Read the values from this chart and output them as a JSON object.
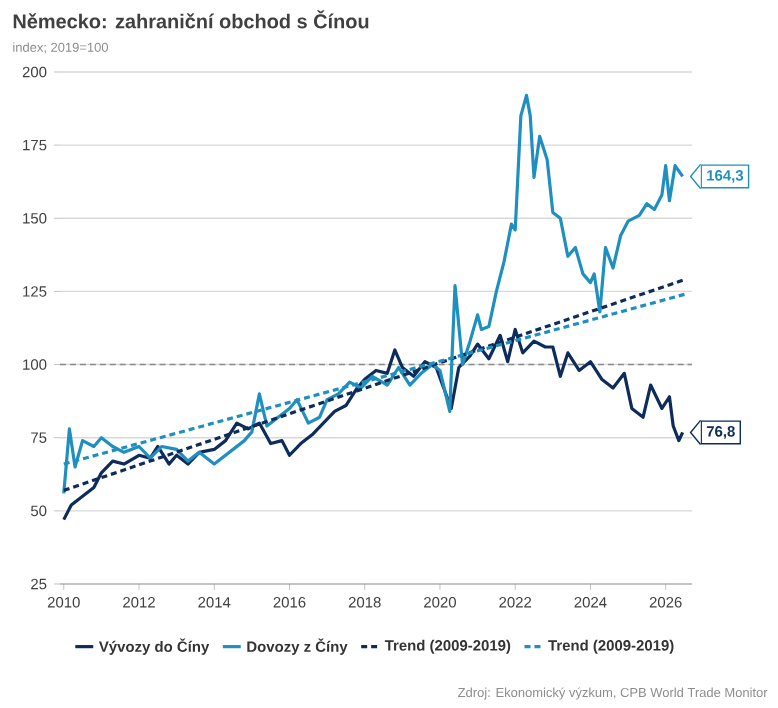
{
  "chart_data": {
    "type": "line",
    "title": "Německo: zahraniční obchod s Čínou",
    "subtitle": "index; 2019=100",
    "annotations": [
      {
        "text": "164,3",
        "x": 2026.45,
        "y": 164.3
      },
      {
        "text": "76,8",
        "x": 2026.45,
        "y": 76.8
      },
      "Zdroj: Ekonomický výzkum, CPB World Trade Monitor"
    ],
    "xlim": [
      2009.9,
      2026.7
    ],
    "xticks": [
      2010,
      2012,
      2014,
      2016,
      2018,
      2020,
      2022,
      2024,
      2026
    ],
    "ylim": [
      25,
      200
    ],
    "yticks": [
      25,
      50,
      75,
      100,
      125,
      150,
      175,
      200
    ],
    "grid": "y",
    "legend": "bottom",
    "line_style": "solid",
    "marker": "none",
    "ref_lines": [
      {
        "axis": "y",
        "value": 100,
        "color": "#8c8c8c",
        "line_style": "dashed"
      }
    ],
    "series": [
      {
        "name": "Vývozy do Číny",
        "color": "#0d2b5b",
        "x": [
          2010.0,
          2010.2,
          2010.5,
          2010.8,
          2011.0,
          2011.3,
          2011.6,
          2012.0,
          2012.3,
          2012.5,
          2012.8,
          2013.0,
          2013.3,
          2013.6,
          2014.0,
          2014.3,
          2014.6,
          2014.9,
          2015.2,
          2015.5,
          2015.8,
          2016.0,
          2016.3,
          2016.6,
          2016.9,
          2017.2,
          2017.5,
          2017.8,
          2018.0,
          2018.3,
          2018.6,
          2018.8,
          2019.0,
          2019.3,
          2019.6,
          2019.9,
          2020.1,
          2020.3,
          2020.5,
          2020.8,
          2021.0,
          2021.3,
          2021.6,
          2021.8,
          2022.0,
          2022.2,
          2022.5,
          2022.8,
          2023.0,
          2023.2,
          2023.4,
          2023.7,
          2024.0,
          2024.3,
          2024.6,
          2024.9,
          2025.1,
          2025.4,
          2025.6,
          2025.9,
          2026.1,
          2026.2,
          2026.35,
          2026.45
        ],
        "values": [
          47,
          52,
          55,
          58,
          63,
          67,
          66,
          69,
          68,
          72,
          66,
          69,
          66,
          70,
          71,
          74,
          80,
          78,
          80,
          73,
          74,
          69,
          73,
          76,
          80,
          84,
          86,
          92,
          95,
          98,
          97,
          105,
          99,
          96,
          101,
          99,
          92,
          85,
          99,
          103,
          107,
          102,
          110,
          101,
          112,
          104,
          108,
          106,
          106,
          96,
          104,
          98,
          101,
          95,
          92,
          97,
          85,
          82,
          93,
          85,
          89,
          79,
          74,
          76.8
        ]
      },
      {
        "name": "Dovozy z Číny",
        "color": "#1f8fc0",
        "x": [
          2010.0,
          2010.15,
          2010.3,
          2010.5,
          2010.8,
          2011.0,
          2011.3,
          2011.6,
          2012.0,
          2012.3,
          2012.6,
          2013.0,
          2013.3,
          2013.6,
          2014.0,
          2014.4,
          2014.8,
          2015.0,
          2015.2,
          2015.4,
          2015.7,
          2016.0,
          2016.2,
          2016.5,
          2016.8,
          2017.0,
          2017.3,
          2017.6,
          2017.9,
          2018.2,
          2018.6,
          2018.9,
          2019.2,
          2019.5,
          2019.8,
          2020.0,
          2020.26,
          2020.4,
          2020.6,
          2020.8,
          2021.0,
          2021.1,
          2021.3,
          2021.5,
          2021.7,
          2021.9,
          2022.0,
          2022.15,
          2022.3,
          2022.4,
          2022.5,
          2022.65,
          2022.85,
          2023.0,
          2023.2,
          2023.4,
          2023.6,
          2023.8,
          2024.0,
          2024.1,
          2024.25,
          2024.4,
          2024.6,
          2024.8,
          2025.0,
          2025.3,
          2025.5,
          2025.7,
          2025.9,
          2026.0,
          2026.1,
          2026.25,
          2026.45
        ],
        "values": [
          56,
          78,
          65,
          74,
          72,
          75,
          72,
          70,
          72,
          68,
          72,
          71,
          67,
          70,
          66,
          70,
          74,
          77,
          90,
          79,
          82,
          85,
          88,
          80,
          82,
          88,
          90,
          94,
          92,
          96,
          93,
          99,
          93,
          97,
          100,
          98,
          84,
          127,
          100,
          108,
          117,
          112,
          113,
          125,
          135,
          148,
          146,
          185,
          192,
          185,
          164,
          178,
          170,
          152,
          150,
          137,
          140,
          131,
          128,
          131,
          118,
          140,
          133,
          144,
          149,
          151,
          155,
          153,
          158,
          168,
          156,
          168,
          164.3
        ]
      },
      {
        "name": "Trend (2009-2019)",
        "color": "#0d2b5b",
        "line_style": "dashed",
        "x": [
          2010.0,
          2026.5
        ],
        "values": [
          57,
          129
        ]
      },
      {
        "name": "Trend (2009-2019)",
        "color": "#1f8fc0",
        "line_style": "dashed",
        "x": [
          2010.0,
          2026.5
        ],
        "values": [
          66,
          124
        ]
      }
    ]
  }
}
